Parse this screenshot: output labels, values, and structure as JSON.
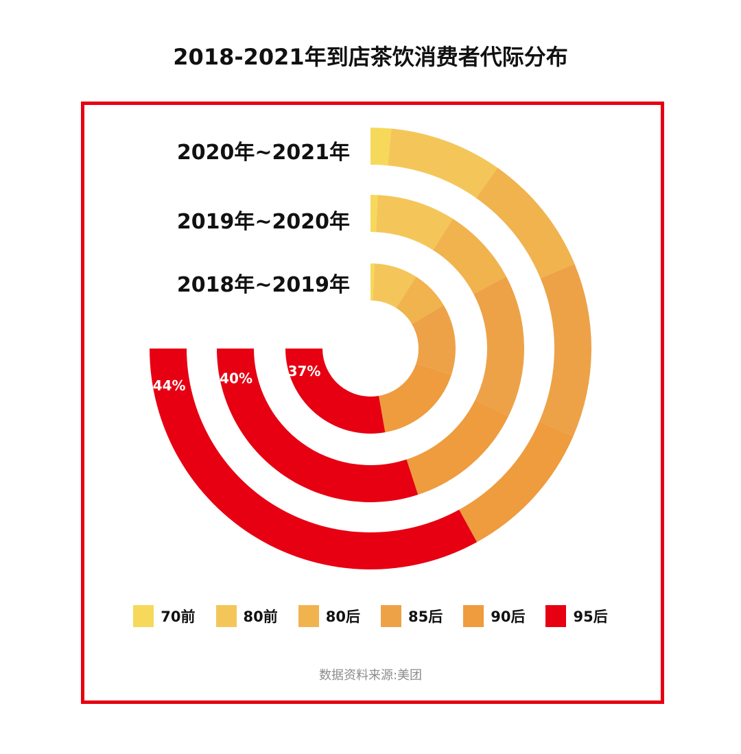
{
  "title": "2018-2021年到店茶饮消费者代际分布",
  "source": "数据资料来源:美团",
  "chart_data": {
    "type": "radial-bar",
    "title": "2018-2021年到店茶饮消费者代际分布",
    "categories": [
      "70前",
      "80前",
      "80后",
      "85后",
      "90后",
      "95后"
    ],
    "colors": [
      "#f6d95b",
      "#f4c65a",
      "#f0b34e",
      "#eda248",
      "#ee9c3e",
      "#e60012"
    ],
    "series": [
      {
        "name": "2018年~2019年",
        "values": [
          1,
          11,
          10,
          18,
          23,
          37
        ],
        "label": "37%"
      },
      {
        "name": "2019年~2020年",
        "values": [
          1,
          11,
          11,
          20,
          17,
          40
        ],
        "label": "40%"
      },
      {
        "name": "2020年~2021年",
        "values": [
          2,
          11,
          12,
          17,
          14,
          44
        ],
        "label": "44%"
      }
    ],
    "sweep_degrees": 270,
    "legend_position": "bottom"
  }
}
